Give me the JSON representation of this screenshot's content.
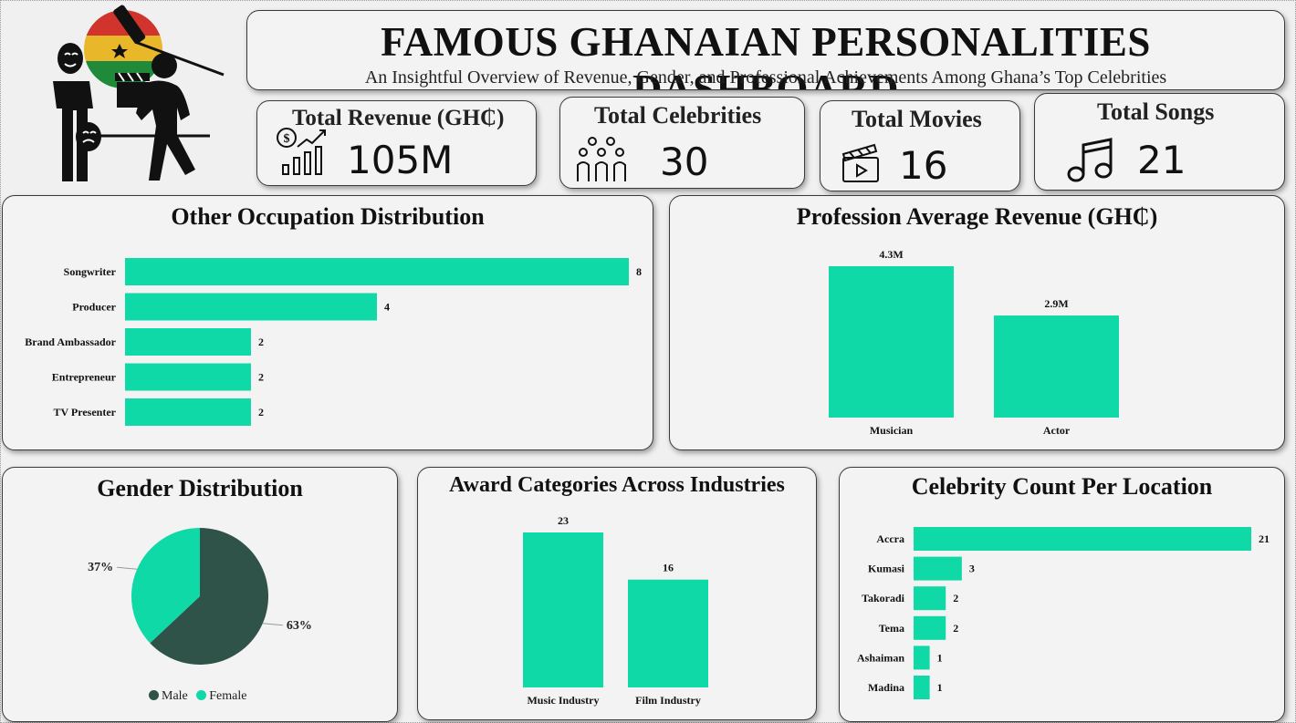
{
  "header": {
    "title": "FAMOUS GHANAIAN PERSONALITIES DASHBOARD",
    "subtitle": "An Insightful Overview of Revenue, Gender, and Professional Achievements Among Ghana’s Top Celebrities"
  },
  "kpis": {
    "revenue": {
      "label": "Total Revenue (GH₵)",
      "value": "105M",
      "icon": "revenue-growth-icon"
    },
    "celebrities": {
      "label": "Total Celebrities",
      "value": "30",
      "icon": "people-group-icon"
    },
    "movies": {
      "label": "Total Movies",
      "value": "16",
      "icon": "clapperboard-icon"
    },
    "songs": {
      "label": "Total Songs",
      "value": "21",
      "icon": "music-note-icon"
    }
  },
  "colors": {
    "accent": "#0fd9a6",
    "male": "#2f5249",
    "panel": "#f3f3f3",
    "border": "#3a3a3a"
  },
  "chart_data": [
    {
      "id": "occupation",
      "type": "bar",
      "orientation": "horizontal",
      "title": "Other Occupation Distribution",
      "categories": [
        "Songwriter",
        "Producer",
        "Brand Ambassador",
        "Entrepreneur",
        "TV Presenter"
      ],
      "values": [
        8,
        4,
        2,
        2,
        2
      ],
      "xlim": [
        0,
        8
      ]
    },
    {
      "id": "profession_revenue",
      "type": "bar",
      "orientation": "vertical",
      "title": "Profession Average Revenue (GH₵)",
      "categories": [
        "Musician",
        "Actor"
      ],
      "values": [
        4.3,
        2.9
      ],
      "labels": [
        "4.3M",
        "2.9M"
      ],
      "ylim": [
        0,
        4.3
      ]
    },
    {
      "id": "gender",
      "type": "pie",
      "title": "Gender Distribution",
      "categories": [
        "Male",
        "Female"
      ],
      "values": [
        63,
        37
      ],
      "labels": [
        "63%",
        "37%"
      ],
      "colors": [
        "#2f5249",
        "#0fd9a6"
      ],
      "legend": "bottom"
    },
    {
      "id": "awards",
      "type": "bar",
      "orientation": "vertical",
      "title": "Award Categories Across Industries",
      "categories": [
        "Music Industry",
        "Film Industry"
      ],
      "values": [
        23,
        16
      ],
      "ylim": [
        0,
        23
      ]
    },
    {
      "id": "location",
      "type": "bar",
      "orientation": "horizontal",
      "title": "Celebrity Count Per Location",
      "categories": [
        "Accra",
        "Kumasi",
        "Takoradi",
        "Tema",
        "Ashaiman",
        "Madina"
      ],
      "values": [
        21,
        3,
        2,
        2,
        1,
        1
      ],
      "xlim": [
        0,
        21
      ]
    }
  ]
}
